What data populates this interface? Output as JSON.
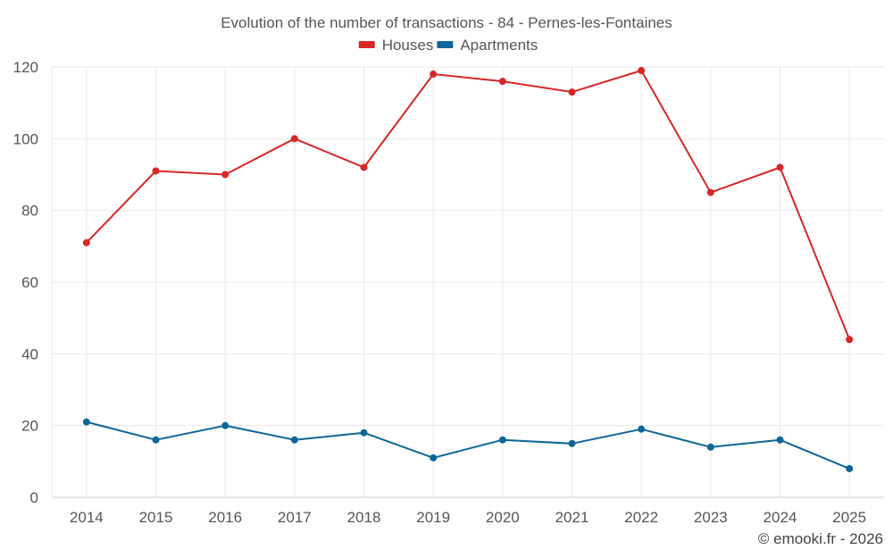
{
  "chart_data": {
    "type": "line",
    "title": "Evolution of the number of transactions - 84 - Pernes-les-Fontaines",
    "categories": [
      "2014",
      "2015",
      "2016",
      "2017",
      "2018",
      "2019",
      "2020",
      "2021",
      "2022",
      "2023",
      "2024",
      "2025"
    ],
    "series": [
      {
        "name": "Houses",
        "color": "#d62728",
        "values": [
          71,
          91,
          90,
          100,
          92,
          118,
          116,
          113,
          119,
          85,
          92,
          44
        ]
      },
      {
        "name": "Apartments",
        "color": "#0e6698",
        "values": [
          21,
          16,
          20,
          16,
          18,
          11,
          16,
          15,
          19,
          14,
          16,
          8
        ]
      }
    ],
    "ylim": [
      0,
      120
    ],
    "yticks": [
      0,
      20,
      40,
      60,
      80,
      100,
      120
    ],
    "xlabel": "",
    "ylabel": "",
    "grid": true,
    "legend_position": "top-center"
  },
  "credit": "© emooki.fr - 2026"
}
